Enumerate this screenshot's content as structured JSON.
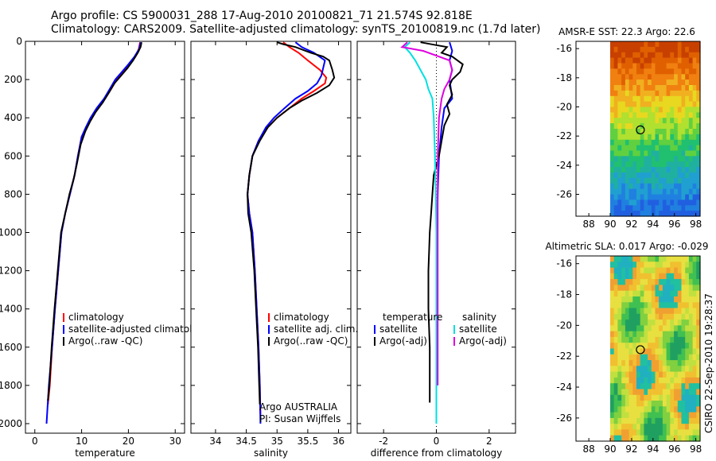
{
  "header": {
    "line1": "Argo profile: CS 5900031_288 17-Aug-2010 20100821_71 21.574S 92.818E",
    "line2": "Climatology: CARS2009. Satellite-adjusted climatology: synTS_20100819.nc (1.7d later)"
  },
  "credit": "CSIRO 22-Sep-2010 19:28:37",
  "colors": {
    "climatology": "#ff0000",
    "satellite": "#0000ff",
    "argo": "#000000",
    "sat_salinity": "#00e0e0",
    "argo_salinity": "#e000e0",
    "marker": "#000000"
  },
  "chart_data": [
    {
      "type": "line",
      "panel": "temperature",
      "xlabel": "temperature",
      "ylim": [
        0,
        2050
      ],
      "xlim": [
        -2,
        32
      ],
      "xticks": [
        0,
        10,
        20,
        30
      ],
      "yticks": [
        0,
        200,
        400,
        600,
        800,
        1000,
        1200,
        1400,
        1600,
        1800,
        2000
      ],
      "legend": {
        "items": [
          "climatology",
          "satellite-adjusted climatology",
          "Argo(..raw -QC)"
        ],
        "colors": [
          "#ff0000",
          "#0000ff",
          "#000000"
        ],
        "placement": "lower-middle"
      },
      "series": [
        {
          "name": "climatology",
          "color": "#ff0000",
          "points": [
            [
              22.5,
              5
            ],
            [
              22.2,
              40
            ],
            [
              21.5,
              80
            ],
            [
              20.3,
              120
            ],
            [
              19,
              160
            ],
            [
              17.5,
              200
            ],
            [
              16.3,
              250
            ],
            [
              15,
              300
            ],
            [
              13.3,
              350
            ],
            [
              12,
              400
            ],
            [
              11,
              450
            ],
            [
              10,
              500
            ],
            [
              9.2,
              600
            ],
            [
              8.5,
              700
            ],
            [
              7.5,
              800
            ],
            [
              6.5,
              900
            ],
            [
              5.7,
              1000
            ],
            [
              5,
              1200
            ],
            [
              4.3,
              1400
            ],
            [
              3.7,
              1600
            ],
            [
              3.2,
              1800
            ],
            [
              2.8,
              1900
            ]
          ]
        },
        {
          "name": "satellite-adjusted climatology",
          "color": "#0000ff",
          "points": [
            [
              22.6,
              5
            ],
            [
              22.3,
              40
            ],
            [
              21.3,
              80
            ],
            [
              20,
              120
            ],
            [
              18.6,
              160
            ],
            [
              17.2,
              200
            ],
            [
              16,
              250
            ],
            [
              14.8,
              300
            ],
            [
              13.2,
              350
            ],
            [
              11.9,
              400
            ],
            [
              10.9,
              450
            ],
            [
              10,
              500
            ],
            [
              9.2,
              600
            ],
            [
              8.5,
              700
            ],
            [
              7.5,
              800
            ],
            [
              6.5,
              900
            ],
            [
              5.7,
              1000
            ],
            [
              5,
              1200
            ],
            [
              4.3,
              1400
            ],
            [
              3.7,
              1600
            ],
            [
              3,
              1800
            ],
            [
              2.5,
              2000
            ]
          ]
        },
        {
          "name": "Argo(..raw -QC)",
          "color": "#000000",
          "points": [
            [
              22.8,
              5
            ],
            [
              22.6,
              30
            ],
            [
              22,
              60
            ],
            [
              21,
              100
            ],
            [
              19.8,
              140
            ],
            [
              18.4,
              180
            ],
            [
              17,
              220
            ],
            [
              15.8,
              270
            ],
            [
              14.5,
              320
            ],
            [
              13,
              370
            ],
            [
              11.8,
              420
            ],
            [
              10.8,
              470
            ],
            [
              9.8,
              540
            ],
            [
              9,
              640
            ],
            [
              8.3,
              720
            ],
            [
              7.4,
              800
            ],
            [
              6.5,
              900
            ],
            [
              5.6,
              1000
            ],
            [
              4.9,
              1200
            ],
            [
              4.2,
              1400
            ],
            [
              3.6,
              1600
            ],
            [
              3.1,
              1800
            ],
            [
              2.8,
              1880
            ]
          ]
        }
      ]
    },
    {
      "type": "line",
      "panel": "salinity",
      "xlabel": "salinity",
      "ylim": [
        0,
        2050
      ],
      "xlim": [
        33.6,
        36.2
      ],
      "xticks": [
        34,
        34.5,
        35,
        35.5,
        36
      ],
      "legend": {
        "items": [
          "climatology",
          "satellite adj. clim.",
          "Argo(..raw -QC)"
        ],
        "colors": [
          "#ff0000",
          "#0000ff",
          "#000000"
        ],
        "placement": "lower-right"
      },
      "annotations": [
        "Argo AUSTRALIA",
        "PI: Susan Wijffels"
      ],
      "series": [
        {
          "name": "climatology",
          "color": "#ff0000",
          "points": [
            [
              35.1,
              5
            ],
            [
              35.2,
              30
            ],
            [
              35.35,
              60
            ],
            [
              35.5,
              100
            ],
            [
              35.7,
              150
            ],
            [
              35.8,
              190
            ],
            [
              35.78,
              220
            ],
            [
              35.6,
              260
            ],
            [
              35.4,
              300
            ],
            [
              35.2,
              350
            ],
            [
              35,
              400
            ],
            [
              34.85,
              450
            ],
            [
              34.7,
              520
            ],
            [
              34.6,
              600
            ],
            [
              34.55,
              700
            ],
            [
              34.52,
              800
            ],
            [
              34.55,
              900
            ],
            [
              34.6,
              1000
            ],
            [
              34.64,
              1200
            ],
            [
              34.67,
              1400
            ],
            [
              34.7,
              1600
            ],
            [
              34.72,
              1800
            ],
            [
              34.73,
              1950
            ]
          ]
        },
        {
          "name": "satellite adj. clim.",
          "color": "#0000ff",
          "points": [
            [
              35.3,
              5
            ],
            [
              35.4,
              30
            ],
            [
              35.6,
              60
            ],
            [
              35.78,
              100
            ],
            [
              35.75,
              140
            ],
            [
              35.72,
              180
            ],
            [
              35.65,
              220
            ],
            [
              35.5,
              260
            ],
            [
              35.3,
              300
            ],
            [
              35.12,
              350
            ],
            [
              34.95,
              400
            ],
            [
              34.82,
              450
            ],
            [
              34.7,
              520
            ],
            [
              34.6,
              600
            ],
            [
              34.55,
              700
            ],
            [
              34.52,
              800
            ],
            [
              34.55,
              900
            ],
            [
              34.6,
              1000
            ],
            [
              34.64,
              1200
            ],
            [
              34.67,
              1400
            ],
            [
              34.7,
              1600
            ],
            [
              34.72,
              1800
            ],
            [
              34.73,
              2000
            ]
          ]
        },
        {
          "name": "Argo(..raw -QC)",
          "color": "#000000",
          "points": [
            [
              35.0,
              5
            ],
            [
              35.1,
              15
            ],
            [
              35.3,
              30
            ],
            [
              35.55,
              60
            ],
            [
              35.75,
              80
            ],
            [
              35.85,
              100
            ],
            [
              35.9,
              150
            ],
            [
              35.93,
              190
            ],
            [
              35.85,
              230
            ],
            [
              35.65,
              270
            ],
            [
              35.4,
              310
            ],
            [
              35.2,
              350
            ],
            [
              35,
              400
            ],
            [
              34.85,
              450
            ],
            [
              34.72,
              520
            ],
            [
              34.6,
              600
            ],
            [
              34.55,
              700
            ],
            [
              34.52,
              800
            ],
            [
              34.53,
              900
            ],
            [
              34.58,
              1000
            ],
            [
              34.63,
              1200
            ],
            [
              34.66,
              1400
            ],
            [
              34.69,
              1600
            ],
            [
              34.71,
              1800
            ],
            [
              34.72,
              1900
            ]
          ]
        }
      ]
    },
    {
      "type": "line",
      "panel": "difference",
      "xlabel": "difference from climatology",
      "ylim": [
        0,
        2050
      ],
      "xlim": [
        -3,
        3
      ],
      "xticks": [
        -2,
        0,
        2
      ],
      "legend": {
        "items": [
          "temperature",
          "satellite",
          "Argo(-adj)",
          "salinity",
          "satellite",
          "Argo(-adj)"
        ],
        "colors": [
          "",
          "#0000ff",
          "#000000",
          "",
          "#00e0e0",
          "#e000e0"
        ],
        "placement": "lower"
      },
      "series": [
        {
          "name": "temperature satellite",
          "color": "#0000ff",
          "points": [
            [
              0.5,
              5
            ],
            [
              0.6,
              50
            ],
            [
              0.5,
              100
            ],
            [
              0.6,
              150
            ],
            [
              0.5,
              200
            ],
            [
              0.6,
              300
            ],
            [
              0.3,
              350
            ],
            [
              0.2,
              450
            ],
            [
              0.1,
              600
            ],
            [
              0.05,
              800
            ],
            [
              0.02,
              1000
            ],
            [
              0.02,
              1400
            ],
            [
              0.02,
              1800
            ]
          ]
        },
        {
          "name": "temperature Argo(-adj)",
          "color": "#000000",
          "points": [
            [
              -0.6,
              5
            ],
            [
              0,
              20
            ],
            [
              0.4,
              30
            ],
            [
              0.2,
              60
            ],
            [
              0.6,
              80
            ],
            [
              1,
              120
            ],
            [
              0.9,
              160
            ],
            [
              0.6,
              200
            ],
            [
              0.5,
              230
            ],
            [
              0.6,
              280
            ],
            [
              0.4,
              330
            ],
            [
              0.5,
              380
            ],
            [
              0.3,
              440
            ],
            [
              0.2,
              520
            ],
            [
              0.1,
              600
            ],
            [
              -0.1,
              700
            ],
            [
              -0.15,
              800
            ],
            [
              -0.2,
              900
            ],
            [
              -0.25,
              1000
            ],
            [
              -0.3,
              1200
            ],
            [
              -0.3,
              1400
            ],
            [
              -0.25,
              1600
            ],
            [
              -0.25,
              1800
            ],
            [
              -0.25,
              1890
            ]
          ]
        },
        {
          "name": "salinity satellite",
          "color": "#00e0e0",
          "points": [
            [
              -1,
              5
            ],
            [
              -1.2,
              30
            ],
            [
              -1,
              60
            ],
            [
              -0.8,
              100
            ],
            [
              -0.6,
              150
            ],
            [
              -0.4,
              200
            ],
            [
              -0.3,
              250
            ],
            [
              -0.15,
              300
            ],
            [
              -0.1,
              400
            ],
            [
              -0.05,
              600
            ],
            [
              -0.02,
              800
            ],
            [
              0,
              1000
            ],
            [
              0,
              1400
            ],
            [
              0,
              1800
            ],
            [
              0,
              2000
            ]
          ]
        },
        {
          "name": "salinity Argo(-adj)",
          "color": "#e000e0",
          "points": [
            [
              -1.1,
              5
            ],
            [
              -1.3,
              30
            ],
            [
              -0.5,
              50
            ],
            [
              0.1,
              80
            ],
            [
              0.5,
              100
            ],
            [
              0.6,
              150
            ],
            [
              0.5,
              200
            ],
            [
              0.3,
              250
            ],
            [
              0.2,
              300
            ],
            [
              0.1,
              400
            ],
            [
              0.05,
              600
            ],
            [
              0.05,
              800
            ],
            [
              0.05,
              1000
            ],
            [
              0.05,
              1400
            ],
            [
              0.05,
              1800
            ]
          ]
        }
      ]
    },
    {
      "type": "heatmap",
      "title": "AMSR-E SST: 22.3  Argo: 22.6",
      "xticks": [
        88,
        90,
        92,
        94,
        96,
        98
      ],
      "yticks": [
        -16,
        -18,
        -20,
        -22,
        -24,
        -26
      ],
      "xlim": [
        86.8,
        98.4
      ],
      "ylim": [
        -27.5,
        -15.5
      ],
      "data_extent": {
        "x": [
          90,
          98.4
        ],
        "y": [
          -27.5,
          -15.5
        ]
      },
      "marker": [
        92.818,
        -21.574
      ],
      "colors": [
        "#c84000",
        "#e06000",
        "#f08010",
        "#f0b020",
        "#e8d820",
        "#b0e030",
        "#60d040",
        "#20c070",
        "#20b0a0",
        "#20a0d0",
        "#2080e0",
        "#2060e0"
      ]
    },
    {
      "type": "heatmap",
      "title": "Altimetric SLA: 0.017  Argo: -0.029",
      "xticks": [
        88,
        90,
        92,
        94,
        96,
        98
      ],
      "yticks": [
        -16,
        -18,
        -20,
        -22,
        -24,
        -26
      ],
      "xlim": [
        86.8,
        98.4
      ],
      "ylim": [
        -27.5,
        -15.5
      ],
      "data_extent": {
        "x": [
          90,
          98.4
        ],
        "y": [
          -27.5,
          -15.5
        ]
      },
      "marker": [
        92.818,
        -21.574
      ],
      "colors": [
        "#20a060",
        "#40c050",
        "#80d040",
        "#c0e040",
        "#e8e040",
        "#f0c030",
        "#f0a030",
        "#20c0a0",
        "#20b0c0"
      ]
    }
  ]
}
